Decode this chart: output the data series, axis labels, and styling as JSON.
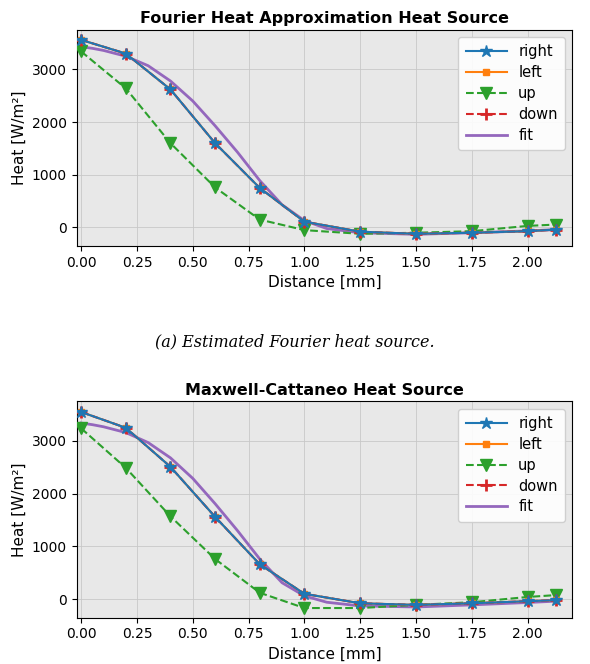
{
  "fourier": {
    "title": "Fourier Heat Approximation Heat Source",
    "right_x": [
      0.0,
      0.2,
      0.4,
      0.6,
      0.8,
      1.0,
      1.25,
      1.5,
      1.75,
      2.0,
      2.125
    ],
    "right_y": [
      3560,
      3300,
      2620,
      1600,
      750,
      110,
      -80,
      -120,
      -100,
      -70,
      -40
    ],
    "left_x": [
      0.0,
      0.2,
      0.4,
      0.6,
      0.8,
      1.0,
      1.25,
      1.5,
      1.75,
      2.0,
      2.125
    ],
    "left_y": [
      3560,
      3300,
      2620,
      1600,
      750,
      110,
      -80,
      -120,
      -100,
      -70,
      -40
    ],
    "up_x": [
      0.0,
      0.2,
      0.4,
      0.6,
      0.8,
      1.0,
      1.25,
      1.5,
      1.75,
      2.0,
      2.125
    ],
    "up_y": [
      3340,
      2640,
      1600,
      760,
      150,
      -50,
      -120,
      -100,
      -70,
      30,
      55
    ],
    "down_x": [
      0.0,
      0.2,
      0.4,
      0.6,
      0.8,
      1.0,
      1.25,
      1.5,
      1.75,
      2.0,
      2.125
    ],
    "down_y": [
      3560,
      3300,
      2620,
      1600,
      750,
      110,
      -80,
      -120,
      -100,
      -70,
      -40
    ],
    "fit_x": [
      0.0,
      0.05,
      0.1,
      0.2,
      0.3,
      0.4,
      0.5,
      0.6,
      0.7,
      0.75,
      0.8,
      0.9,
      1.0,
      1.1,
      1.25,
      1.5,
      1.75,
      2.0,
      2.125
    ],
    "fit_y": [
      3430,
      3400,
      3360,
      3250,
      3070,
      2780,
      2400,
      1930,
      1430,
      1160,
      890,
      430,
      130,
      -20,
      -100,
      -130,
      -100,
      -65,
      -40
    ]
  },
  "maxwell": {
    "title": "Maxwell-Cattaneo Heat Source",
    "right_x": [
      0.0,
      0.2,
      0.4,
      0.6,
      0.8,
      1.0,
      1.25,
      1.5,
      1.75,
      2.0,
      2.125
    ],
    "right_y": [
      3550,
      3250,
      2510,
      1560,
      660,
      100,
      -80,
      -110,
      -80,
      -40,
      -20
    ],
    "left_x": [
      0.0,
      0.2,
      0.4,
      0.6,
      0.8,
      1.0,
      1.25,
      1.5,
      1.75,
      2.0,
      2.125
    ],
    "left_y": [
      3550,
      3250,
      2510,
      1560,
      660,
      100,
      -80,
      -110,
      -80,
      -40,
      -20
    ],
    "up_x": [
      0.0,
      0.2,
      0.4,
      0.6,
      0.8,
      1.0,
      1.25,
      1.5,
      1.75,
      2.0,
      2.125
    ],
    "up_y": [
      3240,
      2490,
      1570,
      760,
      120,
      -170,
      -170,
      -110,
      -60,
      40,
      75
    ],
    "down_x": [
      0.0,
      0.2,
      0.4,
      0.6,
      0.8,
      1.0,
      1.25,
      1.5,
      1.75,
      2.0,
      2.125
    ],
    "down_y": [
      3550,
      3250,
      2510,
      1560,
      660,
      100,
      -80,
      -110,
      -80,
      -40,
      -20
    ],
    "fit_x": [
      0.0,
      0.05,
      0.1,
      0.2,
      0.3,
      0.4,
      0.5,
      0.6,
      0.7,
      0.75,
      0.8,
      0.9,
      1.0,
      1.1,
      1.25,
      1.5,
      1.75,
      2.0,
      2.125
    ],
    "fit_y": [
      3340,
      3310,
      3270,
      3160,
      2970,
      2680,
      2290,
      1810,
      1300,
      1030,
      760,
      310,
      60,
      -60,
      -130,
      -150,
      -110,
      -65,
      -40
    ]
  },
  "caption": "(a) Estimated Fourier heat source.",
  "xlabel": "Distance [mm]",
  "ylabel": "Heat [W/m²]",
  "right_color": "#1f77b4",
  "left_color": "#ff7f0e",
  "up_color": "#2ca02c",
  "down_color": "#d62728",
  "fit_color": "#9467bd",
  "xlim": [
    -0.02,
    2.2
  ],
  "ylim": [
    -350,
    3750
  ],
  "yticks": [
    0,
    1000,
    2000,
    3000
  ],
  "xticks": [
    0.0,
    0.25,
    0.5,
    0.75,
    1.0,
    1.25,
    1.5,
    1.75,
    2.0
  ],
  "bg_color": "#e8e8e8",
  "grid_color": "#c8c8c8"
}
